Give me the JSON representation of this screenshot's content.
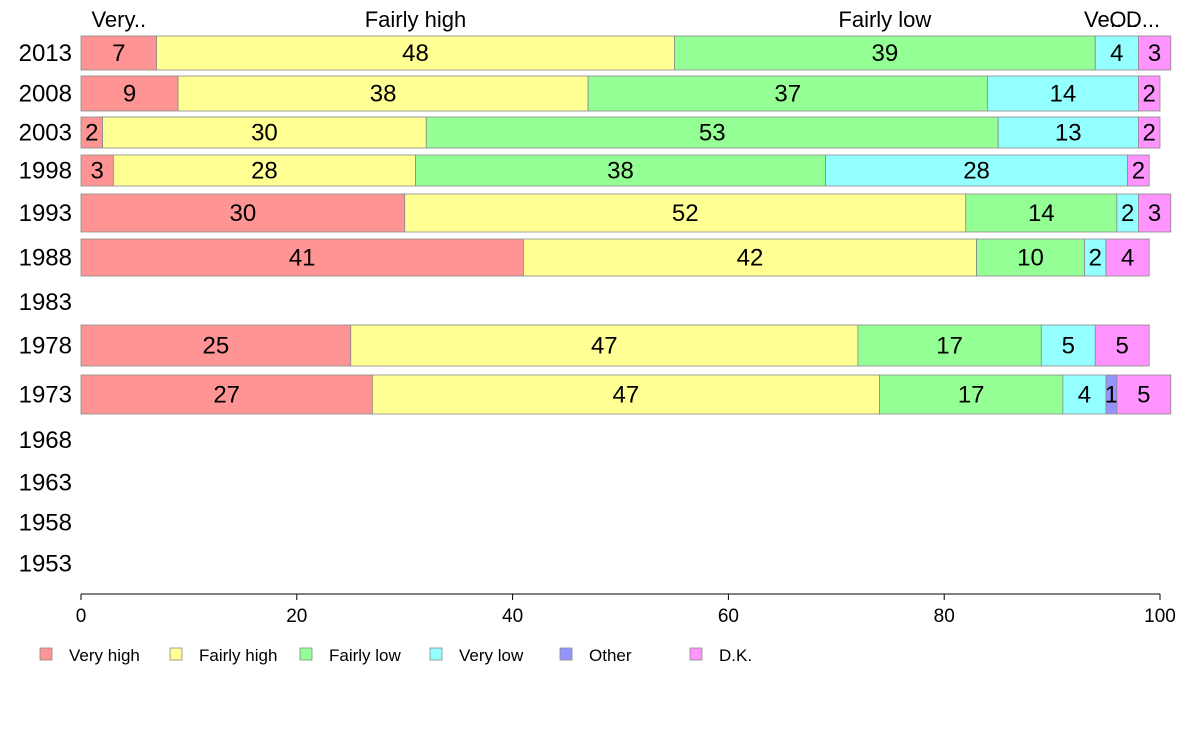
{
  "chart_data": {
    "type": "bar",
    "orientation": "horizontal",
    "stacked": true,
    "categories": [
      "2013",
      "2008",
      "2003",
      "1998",
      "1993",
      "1988",
      "1983",
      "1978",
      "1973",
      "1968",
      "1963",
      "1958",
      "1953"
    ],
    "series": [
      {
        "name": "Very high",
        "color": "#ff9494",
        "values": [
          7,
          9,
          2,
          3,
          30,
          41,
          null,
          25,
          27,
          null,
          null,
          null,
          null
        ]
      },
      {
        "name": "Fairly high",
        "color": "#ffff94",
        "values": [
          48,
          38,
          30,
          28,
          52,
          42,
          null,
          47,
          47,
          null,
          null,
          null,
          null
        ]
      },
      {
        "name": "Fairly low",
        "color": "#94ff94",
        "values": [
          39,
          37,
          53,
          38,
          14,
          10,
          null,
          17,
          17,
          null,
          null,
          null,
          null
        ]
      },
      {
        "name": "Very low",
        "color": "#94ffff",
        "values": [
          4,
          14,
          13,
          28,
          2,
          2,
          null,
          5,
          4,
          null,
          null,
          null,
          null
        ]
      },
      {
        "name": "Other",
        "color": "#9494ff",
        "values": [
          0,
          0,
          0,
          0,
          0,
          0,
          null,
          0,
          1,
          null,
          null,
          null,
          null
        ]
      },
      {
        "name": "D.K.",
        "color": "#ff94ff",
        "values": [
          3,
          2,
          2,
          2,
          3,
          4,
          null,
          5,
          5,
          null,
          null,
          null,
          null
        ]
      }
    ],
    "top_labels": [
      "Very..",
      "Fairly high",
      "Fairly low",
      "Ve..",
      "O..",
      "D..."
    ],
    "xlim": [
      0,
      100
    ],
    "xticks": [
      0,
      20,
      40,
      60,
      80,
      100
    ],
    "grid": false,
    "legend_position": "bottom"
  }
}
